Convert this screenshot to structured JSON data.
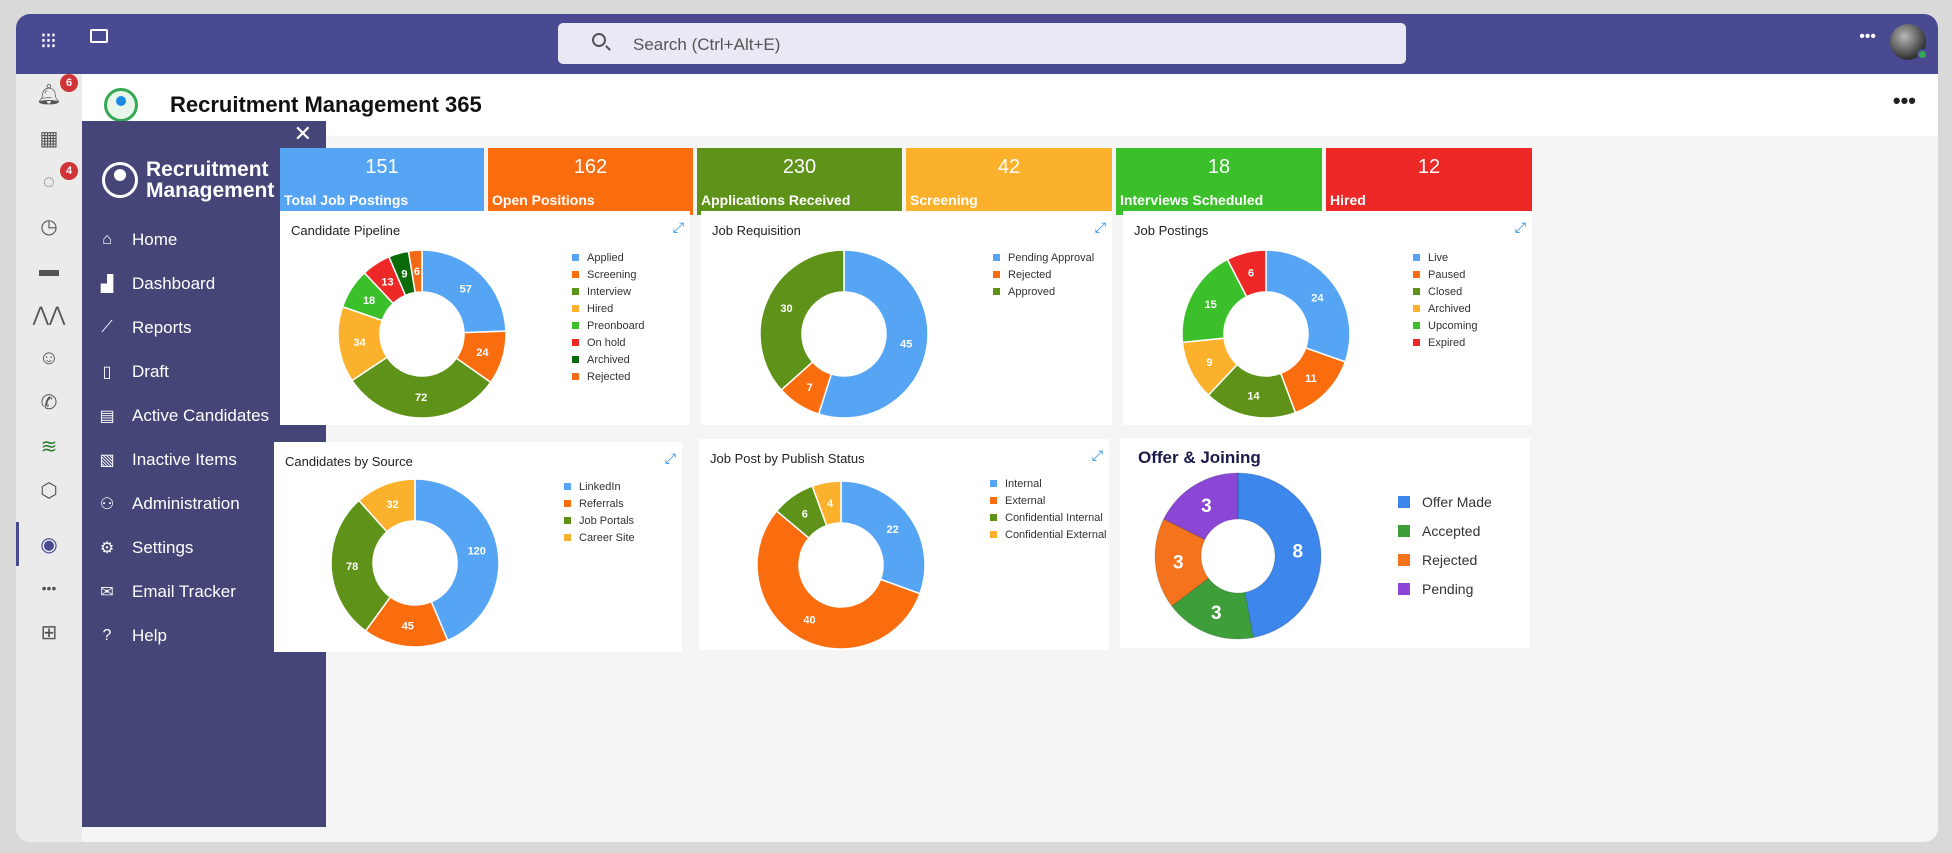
{
  "topbar": {
    "search_placeholder": "Search (Ctrl+Alt+E)"
  },
  "rail": {
    "notifications_badge": "6",
    "chat_badge": "4"
  },
  "header": {
    "title": "Recruitment Management 365",
    "more": "•••"
  },
  "sidebar": {
    "brand_line1": "Recruitment",
    "brand_line2": "Management",
    "items": [
      {
        "label": "Home",
        "icon": "home-icon"
      },
      {
        "label": "Dashboard",
        "icon": "dashboard-icon"
      },
      {
        "label": "Reports",
        "icon": "reports-icon"
      },
      {
        "label": "Draft",
        "icon": "draft-icon"
      },
      {
        "label": "Active Candidates",
        "icon": "candidates-icon"
      },
      {
        "label": "Inactive Items",
        "icon": "inactive-icon"
      },
      {
        "label": "Administration",
        "icon": "admin-icon"
      },
      {
        "label": "Settings",
        "icon": "gear-icon"
      },
      {
        "label": "Email Tracker",
        "icon": "mail-icon"
      },
      {
        "label": "Help",
        "icon": "help-icon"
      }
    ]
  },
  "stats": [
    {
      "value": "151",
      "label": "Total Job Postings",
      "color": "#56a5f5"
    },
    {
      "value": "162",
      "label": "Open Positions",
      "color": "#fa6d0f"
    },
    {
      "value": "230",
      "label": "Applications Received",
      "color": "#5e9218"
    },
    {
      "value": "42",
      "label": "Screening",
      "color": "#fbb12b"
    },
    {
      "value": "18",
      "label": "Interviews Scheduled",
      "color": "#3bc02b"
    },
    {
      "value": "12",
      "label": "Hired",
      "color": "#ee2727"
    }
  ],
  "chart_data": [
    {
      "type": "pie",
      "title": "Candidate Pipeline",
      "categories": [
        "Applied",
        "Screening",
        "Interview",
        "Hired",
        "Preonboard",
        "On hold",
        "Archived",
        "Rejected"
      ],
      "values": [
        57,
        24,
        72,
        34,
        18,
        13,
        9,
        6
      ],
      "colors": [
        "#56a5f5",
        "#fa6d0f",
        "#5e9218",
        "#fbb12b",
        "#3bc02b",
        "#ee2727",
        "#0b6b0b",
        "#f26a16"
      ]
    },
    {
      "type": "pie",
      "title": "Job Requisition",
      "categories": [
        "Pending Approval",
        "Rejected",
        "Approved"
      ],
      "values": [
        45,
        7,
        30
      ],
      "colors": [
        "#56a5f5",
        "#fa6d0f",
        "#5e9218"
      ]
    },
    {
      "type": "pie",
      "title": "Job Postings",
      "categories": [
        "Live",
        "Paused",
        "Closed",
        "Archived",
        "Upcoming",
        "Expired"
      ],
      "values": [
        24,
        11,
        14,
        9,
        15,
        6
      ],
      "colors": [
        "#56a5f5",
        "#fa6d0f",
        "#5e9218",
        "#fbb12b",
        "#3bc02b",
        "#ee2727"
      ]
    },
    {
      "type": "pie",
      "title": "Candidates by Source",
      "categories": [
        "LinkedIn",
        "Referrals",
        "Job Portals",
        "Career Site"
      ],
      "values": [
        120,
        45,
        78,
        32
      ],
      "colors": [
        "#56a5f5",
        "#fa6d0f",
        "#5e9218",
        "#fbb12b"
      ]
    },
    {
      "type": "pie",
      "title": "Job Post by Publish Status",
      "categories": [
        "Internal",
        "External",
        "Confidential Internal",
        "Confidential External"
      ],
      "values": [
        22,
        40,
        6,
        4
      ],
      "colors": [
        "#56a5f5",
        "#fa6d0f",
        "#5e9218",
        "#fbb12b"
      ]
    },
    {
      "type": "pie",
      "title": "Offer & Joining",
      "categories": [
        "Offer Made",
        "Accepted",
        "Rejected",
        "Pending"
      ],
      "values": [
        8,
        3,
        3,
        3
      ],
      "colors": [
        "#3d87ec",
        "#3e9e3a",
        "#f4731c",
        "#8b46d6"
      ]
    }
  ]
}
